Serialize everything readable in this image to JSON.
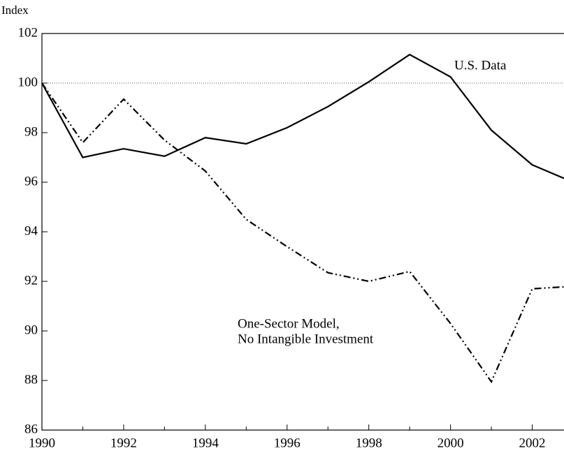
{
  "chart_data": {
    "type": "line",
    "ylabel": "Index",
    "x": [
      1990,
      1991,
      1992,
      1993,
      1994,
      1995,
      1996,
      1997,
      1998,
      1999,
      2000,
      2001,
      2002,
      2003
    ],
    "series": [
      {
        "label_lines": [
          "U.S. Data"
        ],
        "color": "#000000",
        "dash": "solid",
        "values": [
          100,
          97.0,
          97.35,
          97.05,
          97.8,
          97.55,
          98.2,
          99.05,
          100.05,
          101.15,
          100.25,
          98.1,
          96.7,
          96.0
        ]
      },
      {
        "label_lines": [
          "One-Sector Model,",
          "No Intangible Investment"
        ],
        "color": "#000000",
        "dash": "dashdotdot",
        "values": [
          100,
          97.6,
          99.35,
          97.7,
          96.45,
          94.5,
          93.4,
          92.35,
          92.0,
          92.4,
          90.3,
          87.95,
          91.7,
          91.8
        ]
      }
    ],
    "xlim": [
      1990,
      2003
    ],
    "ylim": [
      86,
      102
    ],
    "xticks": [
      1990,
      1992,
      1994,
      1996,
      1998,
      2000,
      2002
    ],
    "xminorticks": [
      1991,
      1993,
      1995,
      1997,
      1999,
      2001
    ],
    "yticks": [
      86,
      88,
      90,
      92,
      94,
      96,
      98,
      100,
      102
    ],
    "reference_line": 100
  }
}
